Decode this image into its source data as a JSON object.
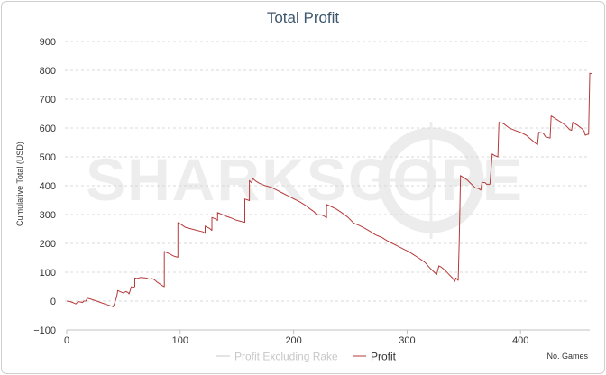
{
  "chart_data": {
    "type": "line",
    "title": "Total Profit",
    "ylabel": "Cumulative Total (USD)",
    "xlabel": "No. Games",
    "watermark": "SHARKSCOPE",
    "xlim": [
      0,
      461
    ],
    "ylim": [
      -100,
      900
    ],
    "x_ticks": [
      0,
      100,
      200,
      300,
      400
    ],
    "y_ticks": [
      -100,
      0,
      100,
      200,
      300,
      400,
      500,
      600,
      700,
      800,
      900
    ],
    "grid": true,
    "legend_position": "bottom-center",
    "colors": {
      "profit": "#b53a3a",
      "profit_excluding_rake": "#c8c8c8",
      "grid": "#d8d8d8",
      "title": "#3e576f"
    },
    "series": [
      {
        "name": "Profit Excluding Rake",
        "visible": false,
        "points": []
      },
      {
        "name": "Profit",
        "visible": true,
        "points": [
          [
            0,
            0
          ],
          [
            3,
            -2
          ],
          [
            6,
            -6
          ],
          [
            8,
            -10
          ],
          [
            10,
            -2
          ],
          [
            12,
            -3
          ],
          [
            14,
            -5
          ],
          [
            15,
            0
          ],
          [
            17,
            0
          ],
          [
            18,
            10
          ],
          [
            20,
            8
          ],
          [
            25,
            2
          ],
          [
            30,
            -5
          ],
          [
            35,
            -12
          ],
          [
            40,
            -18
          ],
          [
            41,
            -20
          ],
          [
            42,
            -10
          ],
          [
            44,
            15
          ],
          [
            45,
            37
          ],
          [
            47,
            33
          ],
          [
            50,
            28
          ],
          [
            52,
            33
          ],
          [
            54,
            30
          ],
          [
            55,
            25
          ],
          [
            57,
            50
          ],
          [
            58,
            45
          ],
          [
            60,
            50
          ],
          [
            60,
            80
          ],
          [
            62,
            78
          ],
          [
            65,
            82
          ],
          [
            70,
            80
          ],
          [
            73,
            76
          ],
          [
            75,
            78
          ],
          [
            77,
            75
          ],
          [
            80,
            65
          ],
          [
            85,
            52
          ],
          [
            86,
            50
          ],
          [
            86,
            172
          ],
          [
            90,
            165
          ],
          [
            95,
            155
          ],
          [
            98,
            152
          ],
          [
            98,
            272
          ],
          [
            100,
            268
          ],
          [
            103,
            260
          ],
          [
            105,
            255
          ],
          [
            110,
            250
          ],
          [
            115,
            245
          ],
          [
            120,
            240
          ],
          [
            122,
            235
          ],
          [
            122,
            260
          ],
          [
            126,
            252
          ],
          [
            128,
            245
          ],
          [
            128,
            290
          ],
          [
            131,
            285
          ],
          [
            133,
            280
          ],
          [
            133,
            307
          ],
          [
            136,
            302
          ],
          [
            140,
            295
          ],
          [
            145,
            288
          ],
          [
            150,
            280
          ],
          [
            155,
            275
          ],
          [
            157,
            273
          ],
          [
            157,
            354
          ],
          [
            160,
            350
          ],
          [
            161,
            348
          ],
          [
            161,
            418
          ],
          [
            163,
            410
          ],
          [
            164,
            425
          ],
          [
            167,
            415
          ],
          [
            170,
            408
          ],
          [
            175,
            400
          ],
          [
            180,
            395
          ],
          [
            185,
            385
          ],
          [
            190,
            375
          ],
          [
            195,
            365
          ],
          [
            200,
            355
          ],
          [
            205,
            345
          ],
          [
            210,
            333
          ],
          [
            215,
            318
          ],
          [
            218,
            310
          ],
          [
            220,
            300
          ],
          [
            225,
            298
          ],
          [
            228,
            292
          ],
          [
            229,
            288
          ],
          [
            229,
            335
          ],
          [
            233,
            328
          ],
          [
            238,
            318
          ],
          [
            243,
            305
          ],
          [
            248,
            290
          ],
          [
            253,
            270
          ],
          [
            258,
            262
          ],
          [
            263,
            252
          ],
          [
            268,
            240
          ],
          [
            272,
            230
          ],
          [
            275,
            225
          ],
          [
            278,
            220
          ],
          [
            282,
            210
          ],
          [
            287,
            200
          ],
          [
            292,
            190
          ],
          [
            297,
            180
          ],
          [
            302,
            170
          ],
          [
            306,
            160
          ],
          [
            310,
            150
          ],
          [
            313,
            142
          ],
          [
            316,
            133
          ],
          [
            320,
            115
          ],
          [
            324,
            100
          ],
          [
            326,
            92
          ],
          [
            328,
            122
          ],
          [
            330,
            118
          ],
          [
            334,
            105
          ],
          [
            337,
            92
          ],
          [
            340,
            80
          ],
          [
            342,
            68
          ],
          [
            343,
            80
          ],
          [
            345,
            72
          ],
          [
            346,
            215
          ],
          [
            347,
            420
          ],
          [
            347,
            435
          ],
          [
            349,
            430
          ],
          [
            353,
            420
          ],
          [
            356,
            408
          ],
          [
            360,
            393
          ],
          [
            363,
            390
          ],
          [
            365,
            385
          ],
          [
            366,
            412
          ],
          [
            369,
            410
          ],
          [
            370,
            405
          ],
          [
            373,
            405
          ],
          [
            375,
            510
          ],
          [
            377,
            505
          ],
          [
            380,
            500
          ],
          [
            381,
            620
          ],
          [
            385,
            615
          ],
          [
            390,
            600
          ],
          [
            395,
            592
          ],
          [
            400,
            585
          ],
          [
            405,
            575
          ],
          [
            410,
            558
          ],
          [
            413,
            548
          ],
          [
            415,
            542
          ],
          [
            416,
            585
          ],
          [
            420,
            582
          ],
          [
            422,
            570
          ],
          [
            426,
            565
          ],
          [
            427,
            642
          ],
          [
            431,
            632
          ],
          [
            435,
            622
          ],
          [
            440,
            608
          ],
          [
            443,
            595
          ],
          [
            445,
            592
          ],
          [
            446,
            620
          ],
          [
            450,
            610
          ],
          [
            454,
            598
          ],
          [
            456,
            590
          ],
          [
            457,
            575
          ],
          [
            459,
            578
          ],
          [
            460,
            578
          ],
          [
            461,
            790
          ],
          [
            463,
            788
          ]
        ]
      }
    ]
  }
}
